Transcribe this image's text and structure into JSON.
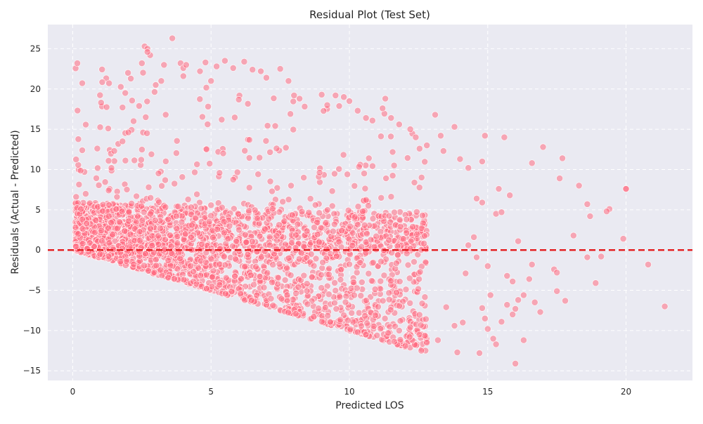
{
  "chart_data": {
    "type": "scatter",
    "title": "Residual Plot (Test Set)",
    "xlabel": "Predicted LOS",
    "ylabel": "Residuals (Actual - Predicted)",
    "xlim": [
      -0.9,
      22.4
    ],
    "ylim": [
      -16.2,
      28.0
    ],
    "xticks": [
      0,
      5,
      10,
      15,
      20
    ],
    "yticks": [
      -15,
      -10,
      -5,
      0,
      5,
      10,
      15,
      20,
      25
    ],
    "grid": true,
    "legend": "none",
    "reference_line": {
      "y": 0,
      "style": "dashed",
      "color": "#e41a1c"
    },
    "colors": {
      "points": "#ff6b81",
      "points_edge": "#ffffff",
      "background": "#eaeaf2",
      "grid": "#ffffff"
    },
    "cloud": {
      "count": 2600,
      "x_range": [
        0.1,
        12.8
      ],
      "lower_bound": "residual >= -predicted",
      "description_points": "dense cloud between predicted 0 and 12"
    },
    "points": [
      [
        0.2,
        2.0
      ],
      [
        0.25,
        4.5
      ],
      [
        0.3,
        5.1
      ],
      [
        0.35,
        3.8
      ],
      [
        0.5,
        3.3
      ],
      [
        1.3,
        7.4
      ],
      [
        1.6,
        6.6
      ],
      [
        1.4,
        10.2
      ],
      [
        1.5,
        12.3
      ],
      [
        1.8,
        13.5
      ],
      [
        1.8,
        17.7
      ],
      [
        1.9,
        19.5
      ],
      [
        2.0,
        22.0
      ],
      [
        2.1,
        21.3
      ],
      [
        2.2,
        16.0
      ],
      [
        2.4,
        17.9
      ],
      [
        2.5,
        23.2
      ],
      [
        2.6,
        25.3
      ],
      [
        2.7,
        25.0
      ],
      [
        2.8,
        24.2
      ],
      [
        2.7,
        24.6
      ],
      [
        3.0,
        20.5
      ],
      [
        3.2,
        21.0
      ],
      [
        3.3,
        23.0
      ],
      [
        3.6,
        26.3
      ],
      [
        3.9,
        23.2
      ],
      [
        4.0,
        22.6
      ],
      [
        4.1,
        23.0
      ],
      [
        4.0,
        21.6
      ],
      [
        4.6,
        22.2
      ],
      [
        4.8,
        23.3
      ],
      [
        5.0,
        21.0
      ],
      [
        5.2,
        22.8
      ],
      [
        5.5,
        23.5
      ],
      [
        5.8,
        22.6
      ],
      [
        6.2,
        23.4
      ],
      [
        6.5,
        22.4
      ],
      [
        6.8,
        22.2
      ],
      [
        7.0,
        21.4
      ],
      [
        7.5,
        22.5
      ],
      [
        7.8,
        21.0
      ],
      [
        8.0,
        19.2
      ],
      [
        8.2,
        18.8
      ],
      [
        9.0,
        19.3
      ],
      [
        9.2,
        18.0
      ],
      [
        9.5,
        19.2
      ],
      [
        9.8,
        19.0
      ],
      [
        10.0,
        18.5
      ],
      [
        10.3,
        17.3
      ],
      [
        10.6,
        16.4
      ],
      [
        11.2,
        17.6
      ],
      [
        11.3,
        18.8
      ],
      [
        11.5,
        14.1
      ],
      [
        11.8,
        15.6
      ],
      [
        12.2,
        15.0
      ],
      [
        12.4,
        14.0
      ],
      [
        12.8,
        13.0
      ],
      [
        13.1,
        16.8
      ],
      [
        13.8,
        15.3
      ],
      [
        13.3,
        14.2
      ],
      [
        13.4,
        12.3
      ],
      [
        14.0,
        11.3
      ],
      [
        14.3,
        10.2
      ],
      [
        14.8,
        11.0
      ],
      [
        14.9,
        14.2
      ],
      [
        15.6,
        14.0
      ],
      [
        16.6,
        10.8
      ],
      [
        17.0,
        12.8
      ],
      [
        17.7,
        11.4
      ],
      [
        17.6,
        8.9
      ],
      [
        18.3,
        8.0
      ],
      [
        18.6,
        5.7
      ],
      [
        18.7,
        4.2
      ],
      [
        19.4,
        5.1
      ],
      [
        19.3,
        4.8
      ],
      [
        20.0,
        7.6
      ],
      [
        19.9,
        1.4
      ],
      [
        18.6,
        -0.9
      ],
      [
        19.1,
        -0.8
      ],
      [
        18.9,
        -4.1
      ],
      [
        18.1,
        1.8
      ],
      [
        17.8,
        -6.3
      ],
      [
        17.5,
        -5.1
      ],
      [
        17.4,
        -2.4
      ],
      [
        17.5,
        -2.8
      ],
      [
        16.9,
        -7.7
      ],
      [
        16.7,
        -6.5
      ],
      [
        16.3,
        -5.6
      ],
      [
        16.6,
        -1.8
      ],
      [
        16.1,
        1.1
      ],
      [
        15.9,
        -3.9
      ],
      [
        15.7,
        -3.2
      ],
      [
        15.7,
        -6.8
      ],
      [
        15.5,
        -8.9
      ],
      [
        15.3,
        -11.7
      ],
      [
        15.2,
        -11.0
      ],
      [
        15.0,
        -9.8
      ],
      [
        14.9,
        -8.5
      ],
      [
        14.7,
        -12.8
      ],
      [
        14.8,
        -7.2
      ],
      [
        14.1,
        -9.0
      ],
      [
        13.9,
        -12.7
      ],
      [
        13.8,
        -9.4
      ],
      [
        13.5,
        -7.1
      ],
      [
        13.2,
        -11.2
      ],
      [
        12.8,
        -11.5
      ],
      [
        12.6,
        -12.5
      ],
      [
        12.2,
        -9.6
      ],
      [
        11.8,
        -10.0
      ],
      [
        11.4,
        -10.3
      ],
      [
        11.0,
        -10.6
      ],
      [
        10.6,
        -10.5
      ],
      [
        10.3,
        -10.2
      ],
      [
        16.0,
        -14.1
      ],
      [
        16.3,
        -11.2
      ],
      [
        15.9,
        -8.0
      ],
      [
        16.0,
        -7.3
      ],
      [
        21.4,
        -7.0
      ],
      [
        20.8,
        -1.8
      ],
      [
        20.0,
        7.6
      ],
      [
        15.3,
        4.5
      ],
      [
        15.5,
        4.7
      ],
      [
        15.4,
        7.6
      ],
      [
        15.8,
        6.8
      ],
      [
        14.8,
        5.9
      ],
      [
        14.6,
        6.4
      ],
      [
        14.5,
        1.6
      ],
      [
        14.3,
        0.6
      ],
      [
        14.6,
        -0.9
      ],
      [
        14.2,
        -2.9
      ],
      [
        15.1,
        -5.6
      ],
      [
        15.0,
        -2.0
      ],
      [
        16.5,
        -3.6
      ],
      [
        16.1,
        -6.2
      ]
    ]
  }
}
